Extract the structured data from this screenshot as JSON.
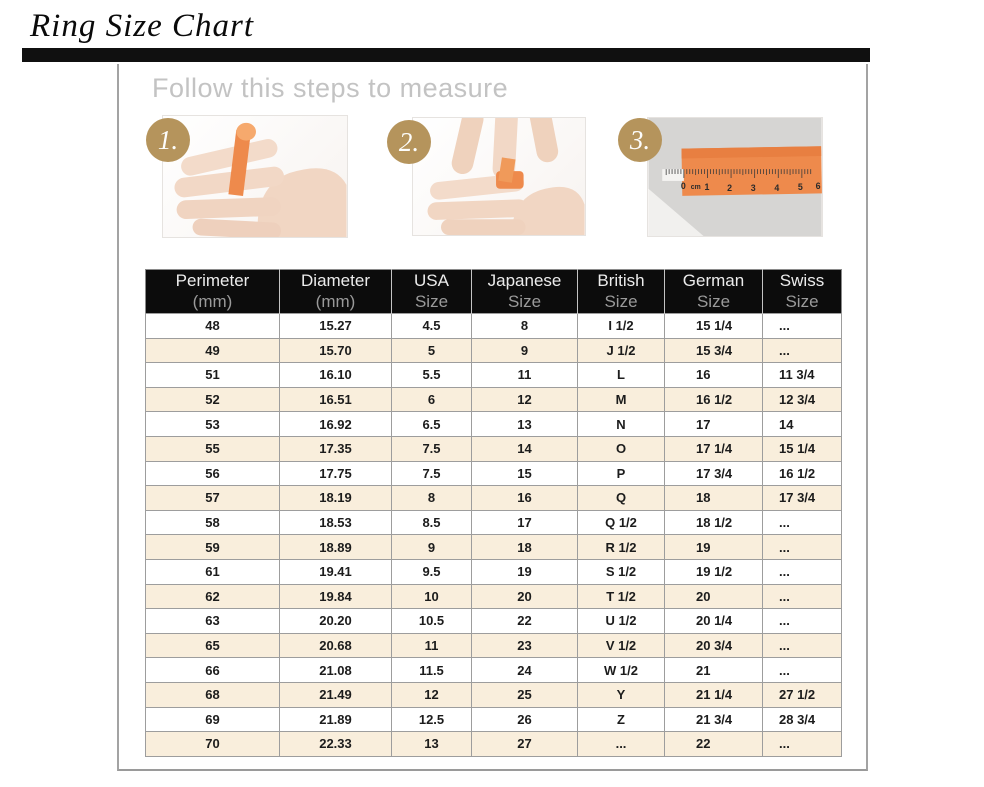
{
  "page": {
    "title": "Ring Size Chart"
  },
  "steps": {
    "heading": "Follow this steps to measure",
    "items": [
      {
        "number": "1.",
        "illustration": "hand with paper strip around finger"
      },
      {
        "number": "2.",
        "illustration": "marking the strip around the finger"
      },
      {
        "number": "3.",
        "illustration": "measuring the strip with a ruler"
      }
    ],
    "ruler_labels": {
      "zero": "0",
      "cm": "cm",
      "n1": "1",
      "n2": "2",
      "n3": "3",
      "n4": "4",
      "n5": "5",
      "n6": "6"
    }
  },
  "table": {
    "headers": [
      {
        "line1": "Perimeter",
        "line2": "(mm)"
      },
      {
        "line1": "Diameter",
        "line2": "(mm)"
      },
      {
        "line1": "USA",
        "line2": "Size"
      },
      {
        "line1": "Japanese",
        "line2": "Size"
      },
      {
        "line1": "British",
        "line2": "Size"
      },
      {
        "line1": "German",
        "line2": "Size"
      },
      {
        "line1": "Swiss",
        "line2": "Size"
      }
    ],
    "rows": [
      [
        "48",
        "15.27",
        "4.5",
        "8",
        "I 1/2",
        "15 1/4",
        "..."
      ],
      [
        "49",
        "15.70",
        "5",
        "9",
        "J 1/2",
        "15 3/4",
        "..."
      ],
      [
        "51",
        "16.10",
        "5.5",
        "11",
        "L",
        "16",
        "11 3/4"
      ],
      [
        "52",
        "16.51",
        "6",
        "12",
        "M",
        "16 1/2",
        "12 3/4"
      ],
      [
        "53",
        "16.92",
        "6.5",
        "13",
        "N",
        "17",
        "14"
      ],
      [
        "55",
        "17.35",
        "7.5",
        "14",
        "O",
        "17 1/4",
        "15 1/4"
      ],
      [
        "56",
        "17.75",
        "7.5",
        "15",
        "P",
        "17 3/4",
        "16 1/2"
      ],
      [
        "57",
        "18.19",
        "8",
        "16",
        "Q",
        "18",
        "17 3/4"
      ],
      [
        "58",
        "18.53",
        "8.5",
        "17",
        "Q 1/2",
        "18 1/2",
        "..."
      ],
      [
        "59",
        "18.89",
        "9",
        "18",
        "R 1/2",
        "19",
        "..."
      ],
      [
        "61",
        "19.41",
        "9.5",
        "19",
        "S 1/2",
        "19 1/2",
        "..."
      ],
      [
        "62",
        "19.84",
        "10",
        "20",
        "T 1/2",
        "20",
        "..."
      ],
      [
        "63",
        "20.20",
        "10.5",
        "22",
        "U 1/2",
        "20 1/4",
        "..."
      ],
      [
        "65",
        "20.68",
        "11",
        "23",
        "V 1/2",
        "20 3/4",
        "..."
      ],
      [
        "66",
        "21.08",
        "11.5",
        "24",
        "W 1/2",
        "21",
        "..."
      ],
      [
        "68",
        "21.49",
        "12",
        "25",
        "Y",
        "21 1/4",
        "27 1/2"
      ],
      [
        "69",
        "21.89",
        "12.5",
        "26",
        "Z",
        "21 3/4",
        "28 3/4"
      ],
      [
        "70",
        "22.33",
        "13",
        "27",
        "...",
        "22",
        "..."
      ]
    ]
  },
  "colors": {
    "accent_gold": "#b5945c",
    "strip_orange": "#ee8a4c",
    "row_cream": "#f9eedc",
    "header_black": "#0c0c0c",
    "border_gray": "#9d9d9d",
    "heading_gray": "#c3c3c3"
  }
}
